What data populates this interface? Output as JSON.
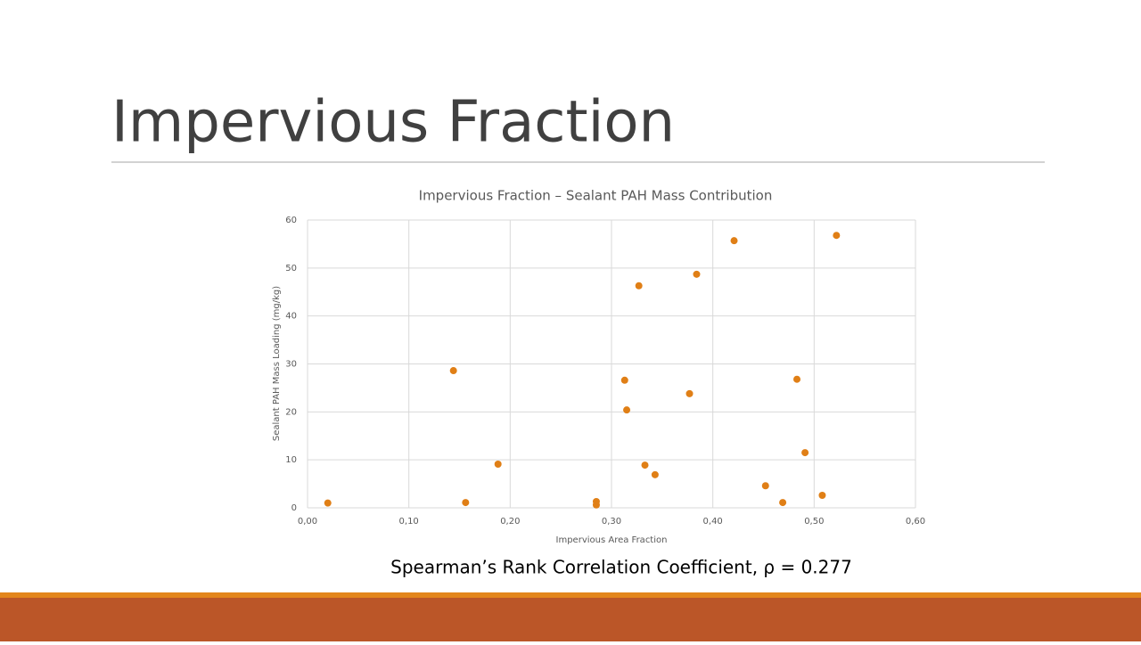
{
  "slide_title": "Impervious Fraction",
  "caption": "Spearman’s Rank Correlation Coefficient, ρ = 0.277",
  "chart_data": {
    "type": "scatter",
    "title": "Impervious Fraction – Sealant PAH Mass Contribution",
    "x_label": "Impervious Area Fraction",
    "y_label": "Sealant PAH Mass Loading (mg/kg)",
    "x": [
      0.02,
      0.144,
      0.156,
      0.188,
      0.285,
      0.285,
      0.313,
      0.315,
      0.327,
      0.333,
      0.343,
      0.377,
      0.384,
      0.421,
      0.452,
      0.469,
      0.483,
      0.491,
      0.508,
      0.522
    ],
    "values": [
      1,
      28.6,
      1.1,
      9.1,
      1.3,
      0.6,
      26.6,
      20.4,
      46.3,
      8.9,
      6.9,
      23.8,
      48.7,
      55.7,
      4.6,
      1.1,
      26.8,
      11.5,
      2.6,
      56.8
    ],
    "color": "#e07f16",
    "xlim": [
      0,
      0.6
    ],
    "ylim": [
      0,
      60
    ],
    "xticks": [
      {
        "value": 0,
        "label": "0,00"
      },
      {
        "value": 0.1,
        "label": "0,10"
      },
      {
        "value": 0.2,
        "label": "0,20"
      },
      {
        "value": 0.3,
        "label": "0,30"
      },
      {
        "value": 0.4,
        "label": "0,40"
      },
      {
        "value": 0.5,
        "label": "0,50"
      },
      {
        "value": 0.6,
        "label": "0,60"
      }
    ],
    "yticks": [
      0,
      10,
      20,
      30,
      40,
      50,
      60
    ],
    "grid": true
  }
}
